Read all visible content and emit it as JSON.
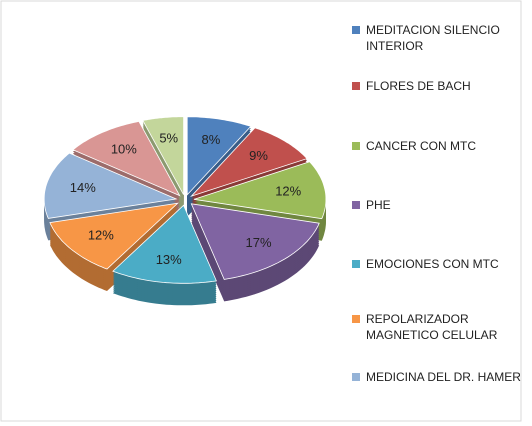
{
  "chart_data": {
    "type": "pie",
    "categories": [
      "MEDITACION SILENCIO INTERIOR",
      "FLORES DE BACH",
      "CANCER CON MTC",
      "PHE",
      "EMOCIONES CON MTC",
      "REPOLARIZADOR MAGNETICO CELULAR",
      "MEDICINA DEL DR. HAMER",
      null,
      null
    ],
    "values": [
      8,
      9,
      12,
      17,
      13,
      12,
      14,
      10,
      5
    ],
    "value_labels": [
      "8%",
      "9%",
      "12%",
      "17%",
      "13%",
      "12%",
      "14%",
      "10%",
      "5%"
    ],
    "colors": [
      "#4f81bd",
      "#c0504d",
      "#9bbb59",
      "#8064a2",
      "#4bacc6",
      "#f79646",
      "#95b3d7",
      "#d99694",
      "#c3d69b"
    ],
    "legend": "right"
  }
}
